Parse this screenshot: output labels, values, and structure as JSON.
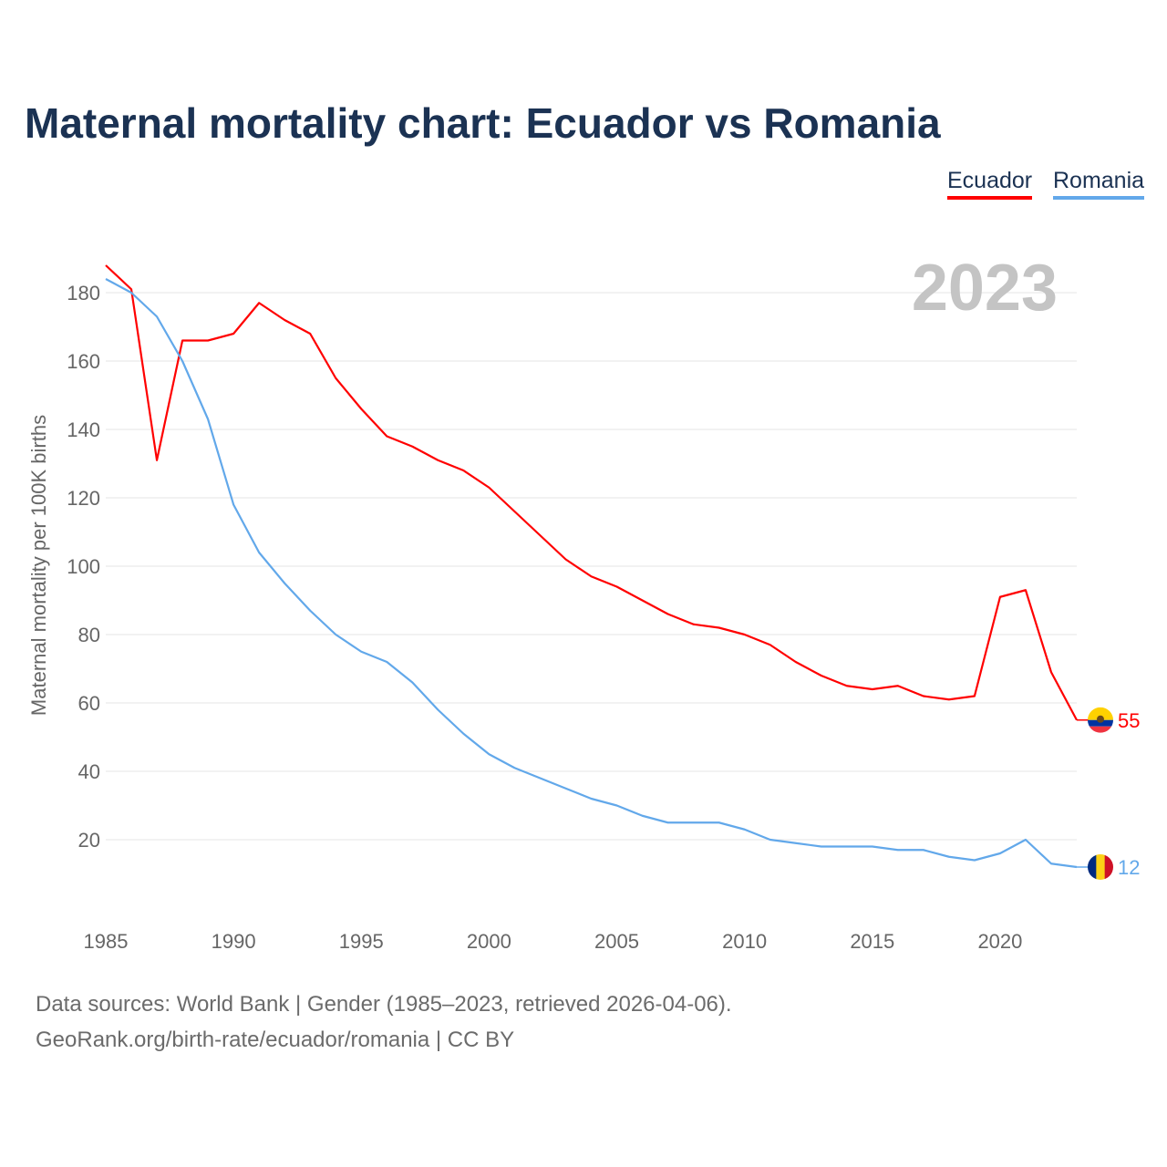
{
  "title": "Maternal mortality chart: Ecuador vs Romania",
  "legend": [
    {
      "label": "Ecuador",
      "color": "#ff0000"
    },
    {
      "label": "Romania",
      "color": "#62a8ea"
    }
  ],
  "sources": {
    "line1": "Data sources: World Bank | Gender (1985–2023, retrieved 2026-04-06).",
    "line2": "GeoRank.org/birth-rate/ecuador/romania | CC BY"
  },
  "chart_data": {
    "type": "line",
    "title": "Maternal mortality chart: Ecuador vs Romania",
    "year_label": "2023",
    "ylabel": "Maternal mortality per 100K births",
    "xlabel": "",
    "xlim": [
      1985,
      2023
    ],
    "ylim": [
      0,
      190
    ],
    "xticks": [
      1985,
      1990,
      1995,
      2000,
      2005,
      2010,
      2015,
      2020
    ],
    "yticks": [
      20,
      40,
      60,
      80,
      100,
      120,
      140,
      160,
      180
    ],
    "grid": true,
    "legend_position": "top-right",
    "x": [
      1985,
      1986,
      1987,
      1988,
      1989,
      1990,
      1991,
      1992,
      1993,
      1994,
      1995,
      1996,
      1997,
      1998,
      1999,
      2000,
      2001,
      2002,
      2003,
      2004,
      2005,
      2006,
      2007,
      2008,
      2009,
      2010,
      2011,
      2012,
      2013,
      2014,
      2015,
      2016,
      2017,
      2018,
      2019,
      2020,
      2021,
      2022,
      2023
    ],
    "series": [
      {
        "name": "Ecuador",
        "color": "#ff0000",
        "end_label": "55",
        "values": [
          188,
          181,
          131,
          166,
          166,
          168,
          177,
          172,
          168,
          155,
          146,
          138,
          135,
          131,
          128,
          123,
          116,
          109,
          102,
          97,
          94,
          90,
          86,
          83,
          82,
          80,
          77,
          72,
          68,
          65,
          64,
          65,
          62,
          61,
          62,
          91,
          93,
          69,
          55
        ]
      },
      {
        "name": "Romania",
        "color": "#62a8ea",
        "end_label": "12",
        "values": [
          184,
          180,
          173,
          160,
          143,
          118,
          104,
          95,
          87,
          80,
          75,
          72,
          66,
          58,
          51,
          45,
          41,
          38,
          35,
          32,
          30,
          27,
          25,
          25,
          25,
          23,
          20,
          19,
          18,
          18,
          18,
          17,
          17,
          15,
          14,
          16,
          20,
          13,
          12
        ]
      }
    ]
  }
}
